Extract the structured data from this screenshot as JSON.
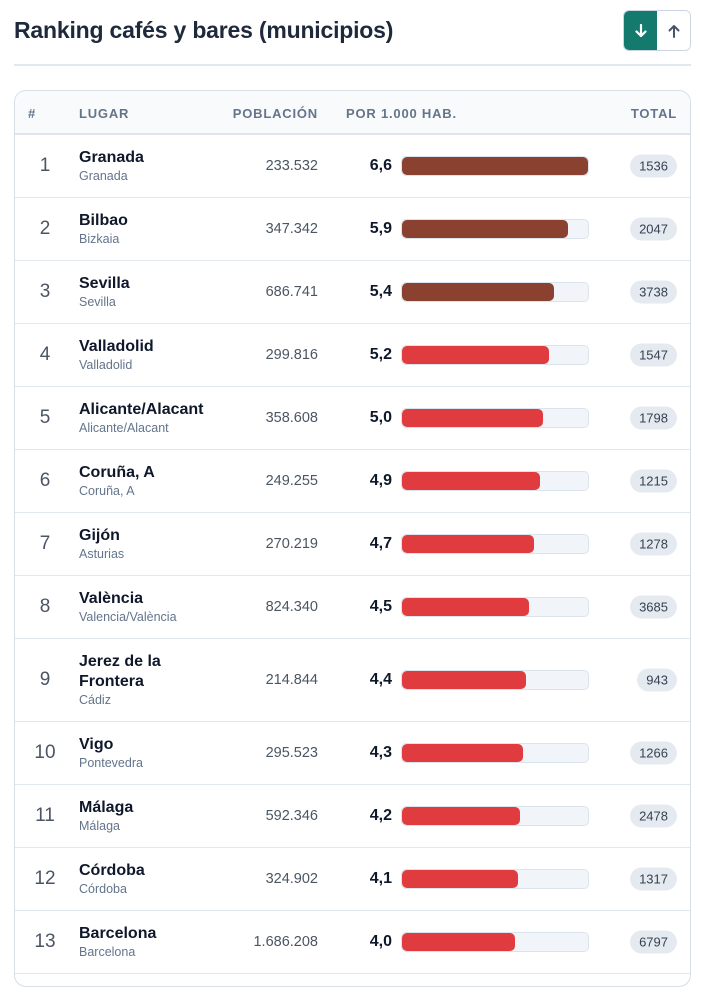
{
  "header": {
    "title": "Ranking cafés y bares (municipios)",
    "sort_desc_icon": "arrow-down-icon",
    "sort_asc_icon": "arrow-up-icon",
    "active_sort": "desc"
  },
  "colors": {
    "accent": "#147a6e",
    "bar_top": "#8a4130",
    "bar_default": "#e03c3f",
    "bar_track": "#f1f5f9"
  },
  "table": {
    "columns": {
      "rank": "#",
      "place": "LUGAR",
      "population": "POBLACIÓN",
      "per_thousand": "POR 1.000 HAB.",
      "total": "TOTAL"
    },
    "scale_max": 6.6,
    "rows": [
      {
        "rank": "1",
        "name": "Granada",
        "region": "Granada",
        "population": "233.532",
        "per_thousand": "6,6",
        "value": 6.6,
        "total": "1536",
        "highlight": true
      },
      {
        "rank": "2",
        "name": "Bilbao",
        "region": "Bizkaia",
        "population": "347.342",
        "per_thousand": "5,9",
        "value": 5.9,
        "total": "2047",
        "highlight": true
      },
      {
        "rank": "3",
        "name": "Sevilla",
        "region": "Sevilla",
        "population": "686.741",
        "per_thousand": "5,4",
        "value": 5.4,
        "total": "3738",
        "highlight": true
      },
      {
        "rank": "4",
        "name": "Valladolid",
        "region": "Valladolid",
        "population": "299.816",
        "per_thousand": "5,2",
        "value": 5.2,
        "total": "1547",
        "highlight": false
      },
      {
        "rank": "5",
        "name": "Alicante/Alacant",
        "region": "Alicante/Alacant",
        "population": "358.608",
        "per_thousand": "5,0",
        "value": 5.0,
        "total": "1798",
        "highlight": false
      },
      {
        "rank": "6",
        "name": "Coruña, A",
        "region": "Coruña, A",
        "population": "249.255",
        "per_thousand": "4,9",
        "value": 4.9,
        "total": "1215",
        "highlight": false
      },
      {
        "rank": "7",
        "name": "Gijón",
        "region": "Asturias",
        "population": "270.219",
        "per_thousand": "4,7",
        "value": 4.7,
        "total": "1278",
        "highlight": false
      },
      {
        "rank": "8",
        "name": "València",
        "region": "Valencia/València",
        "population": "824.340",
        "per_thousand": "4,5",
        "value": 4.5,
        "total": "3685",
        "highlight": false
      },
      {
        "rank": "9",
        "name": "Jerez de la Frontera",
        "region": "Cádiz",
        "population": "214.844",
        "per_thousand": "4,4",
        "value": 4.4,
        "total": "943",
        "highlight": false
      },
      {
        "rank": "10",
        "name": "Vigo",
        "region": "Pontevedra",
        "population": "295.523",
        "per_thousand": "4,3",
        "value": 4.3,
        "total": "1266",
        "highlight": false
      },
      {
        "rank": "11",
        "name": "Málaga",
        "region": "Málaga",
        "population": "592.346",
        "per_thousand": "4,2",
        "value": 4.2,
        "total": "2478",
        "highlight": false
      },
      {
        "rank": "12",
        "name": "Córdoba",
        "region": "Córdoba",
        "population": "324.902",
        "per_thousand": "4,1",
        "value": 4.1,
        "total": "1317",
        "highlight": false
      },
      {
        "rank": "13",
        "name": "Barcelona",
        "region": "Barcelona",
        "population": "1.686.208",
        "per_thousand": "4,0",
        "value": 4.0,
        "total": "6797",
        "highlight": false
      }
    ]
  }
}
